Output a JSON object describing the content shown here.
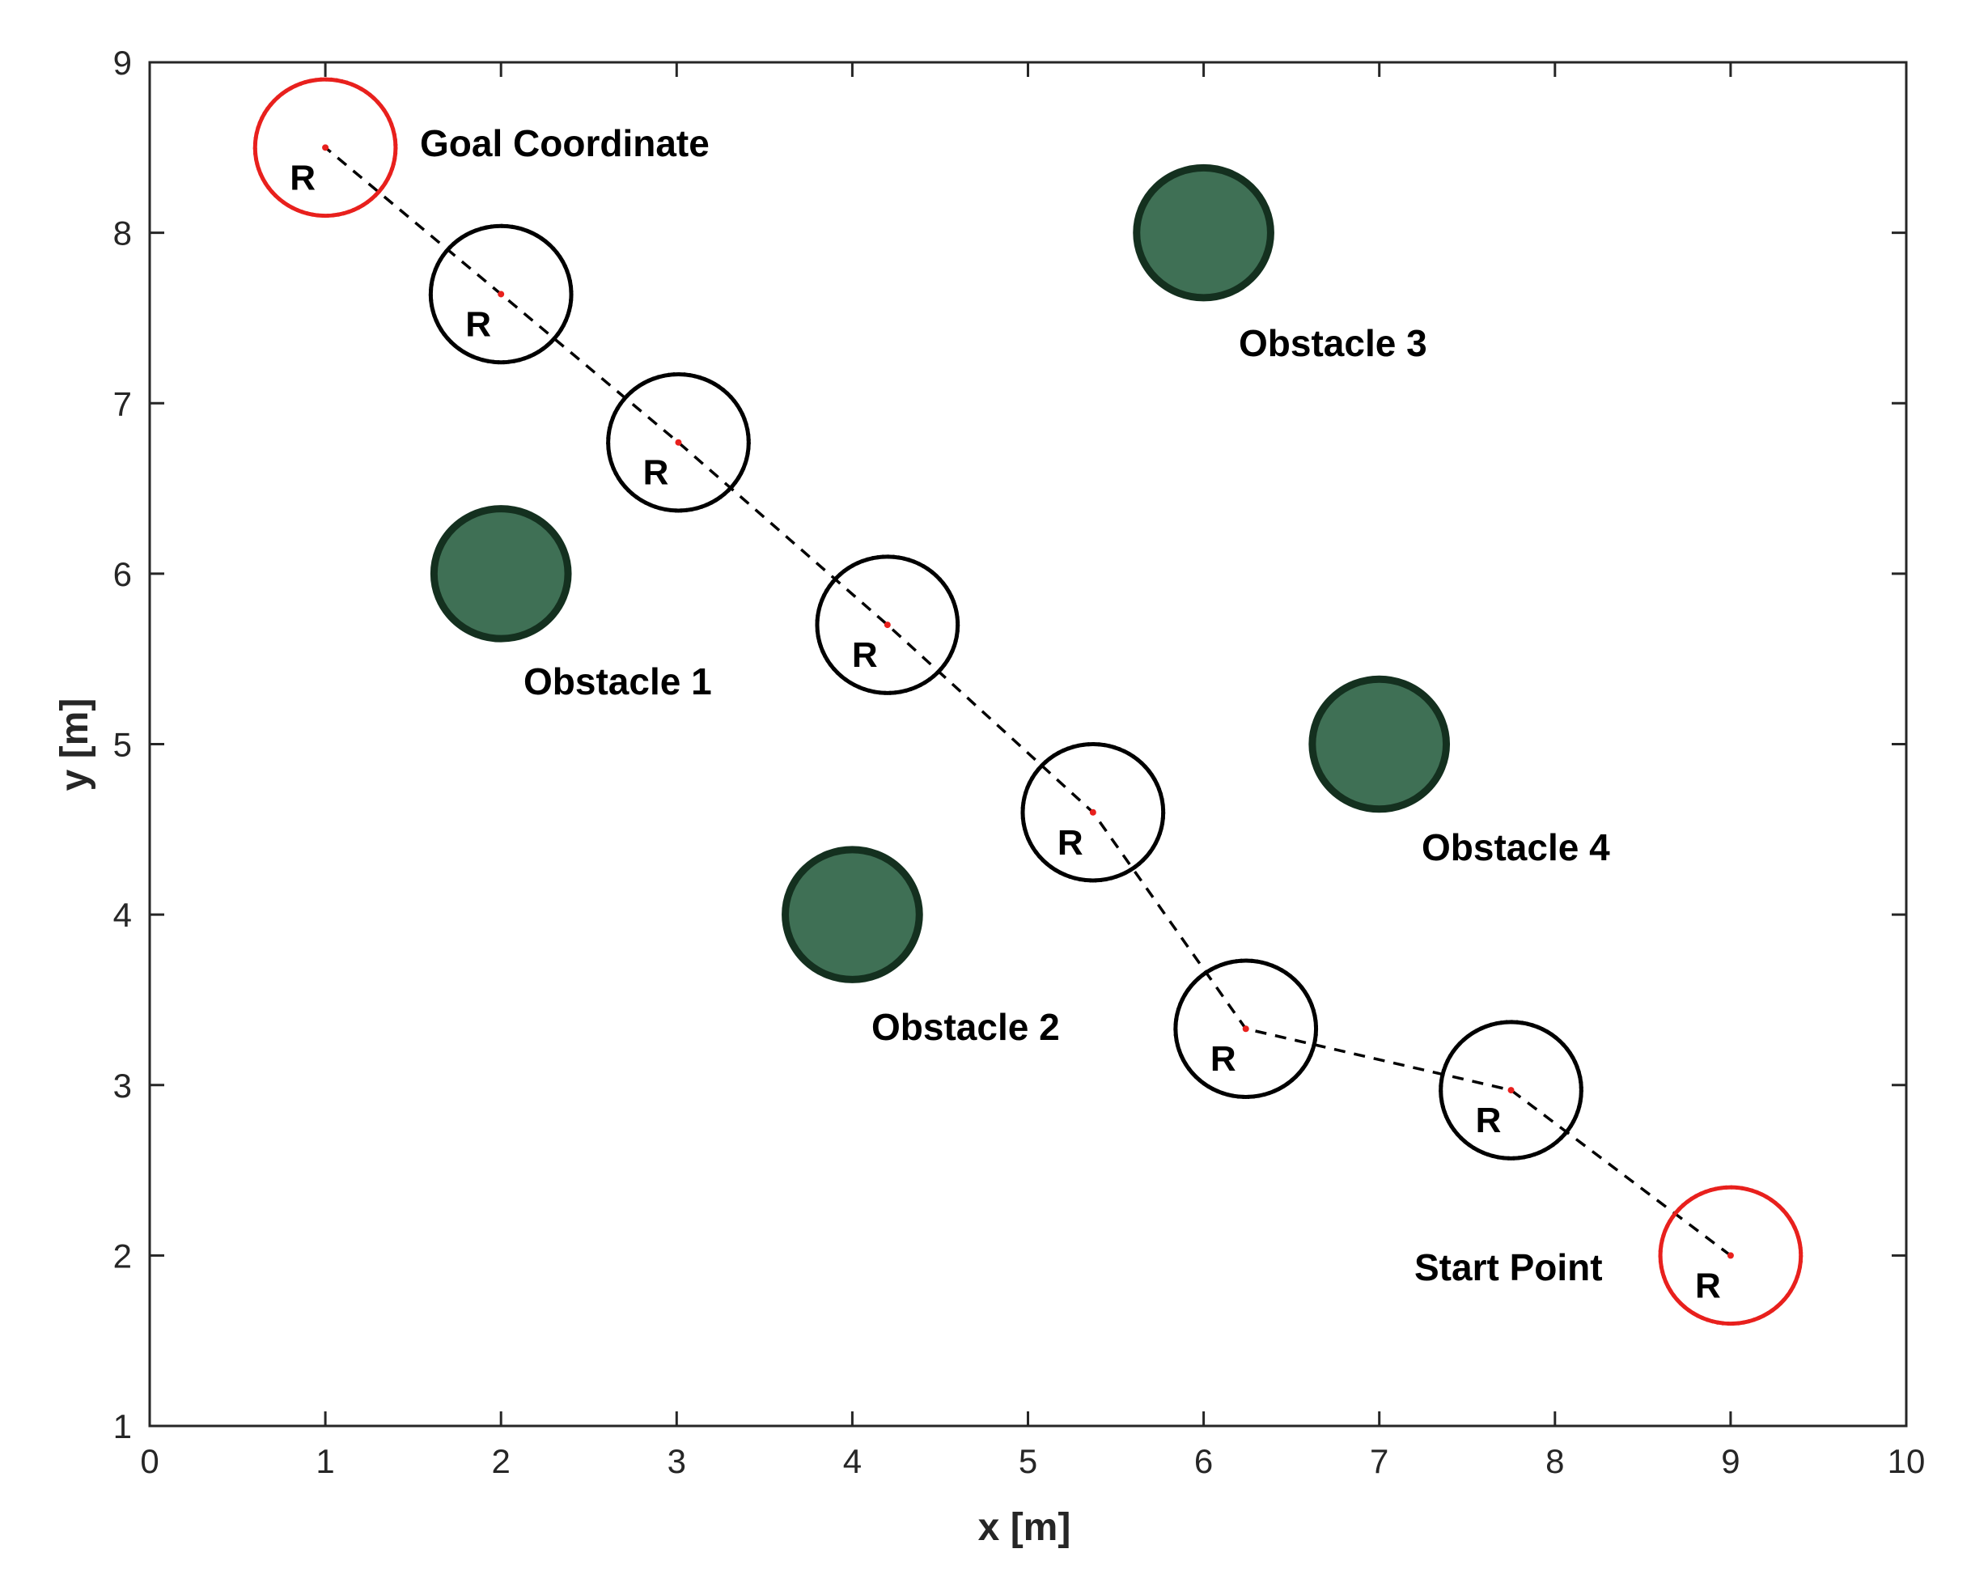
{
  "chart_data": {
    "type": "scatter",
    "xlabel": "x [m]",
    "ylabel": "y [m]",
    "xlim": [
      0,
      10
    ],
    "ylim": [
      1,
      9
    ],
    "xticks": [
      0,
      1,
      2,
      3,
      4,
      5,
      6,
      7,
      8,
      9,
      10
    ],
    "yticks": [
      1,
      2,
      3,
      4,
      5,
      6,
      7,
      8,
      9
    ],
    "grid": false,
    "circle_radius": 0.4,
    "path": {
      "style": "dashed",
      "color": "#000000",
      "points": [
        {
          "x": 9.0,
          "y": 2.0
        },
        {
          "x": 7.75,
          "y": 2.97
        },
        {
          "x": 6.24,
          "y": 3.33
        },
        {
          "x": 5.37,
          "y": 4.6
        },
        {
          "x": 4.2,
          "y": 5.7
        },
        {
          "x": 3.01,
          "y": 6.77
        },
        {
          "x": 2.0,
          "y": 7.64
        },
        {
          "x": 1.0,
          "y": 8.5
        }
      ]
    },
    "robots": [
      {
        "x": 9.0,
        "y": 2.0,
        "role": "start",
        "ring_color": "#e8201d",
        "label": "R"
      },
      {
        "x": 7.75,
        "y": 2.97,
        "role": "waypoint",
        "ring_color": "#000000",
        "label": "R"
      },
      {
        "x": 6.24,
        "y": 3.33,
        "role": "waypoint",
        "ring_color": "#000000",
        "label": "R"
      },
      {
        "x": 5.37,
        "y": 4.6,
        "role": "waypoint",
        "ring_color": "#000000",
        "label": "R"
      },
      {
        "x": 4.2,
        "y": 5.7,
        "role": "waypoint",
        "ring_color": "#000000",
        "label": "R"
      },
      {
        "x": 3.01,
        "y": 6.77,
        "role": "waypoint",
        "ring_color": "#000000",
        "label": "R"
      },
      {
        "x": 2.0,
        "y": 7.64,
        "role": "waypoint",
        "ring_color": "#000000",
        "label": "R"
      },
      {
        "x": 1.0,
        "y": 8.5,
        "role": "goal",
        "ring_color": "#e8201d",
        "label": "R"
      }
    ],
    "obstacles": [
      {
        "x": 2,
        "y": 6,
        "label": "Obstacle 1"
      },
      {
        "x": 4,
        "y": 4,
        "label": "Obstacle 2"
      },
      {
        "x": 6,
        "y": 8,
        "label": "Obstacle 3"
      },
      {
        "x": 7,
        "y": 5,
        "label": "Obstacle 4"
      }
    ],
    "annotations": {
      "goal": "Goal Coordinate",
      "start": "Start Point"
    },
    "colors": {
      "obstacle_fill": "#3f7055",
      "obstacle_edge": "#14301f",
      "endpoint_ring": "#e8201d",
      "waypoint_ring": "#000000",
      "center_dot": "#e8201d",
      "axis": "#262626"
    }
  }
}
